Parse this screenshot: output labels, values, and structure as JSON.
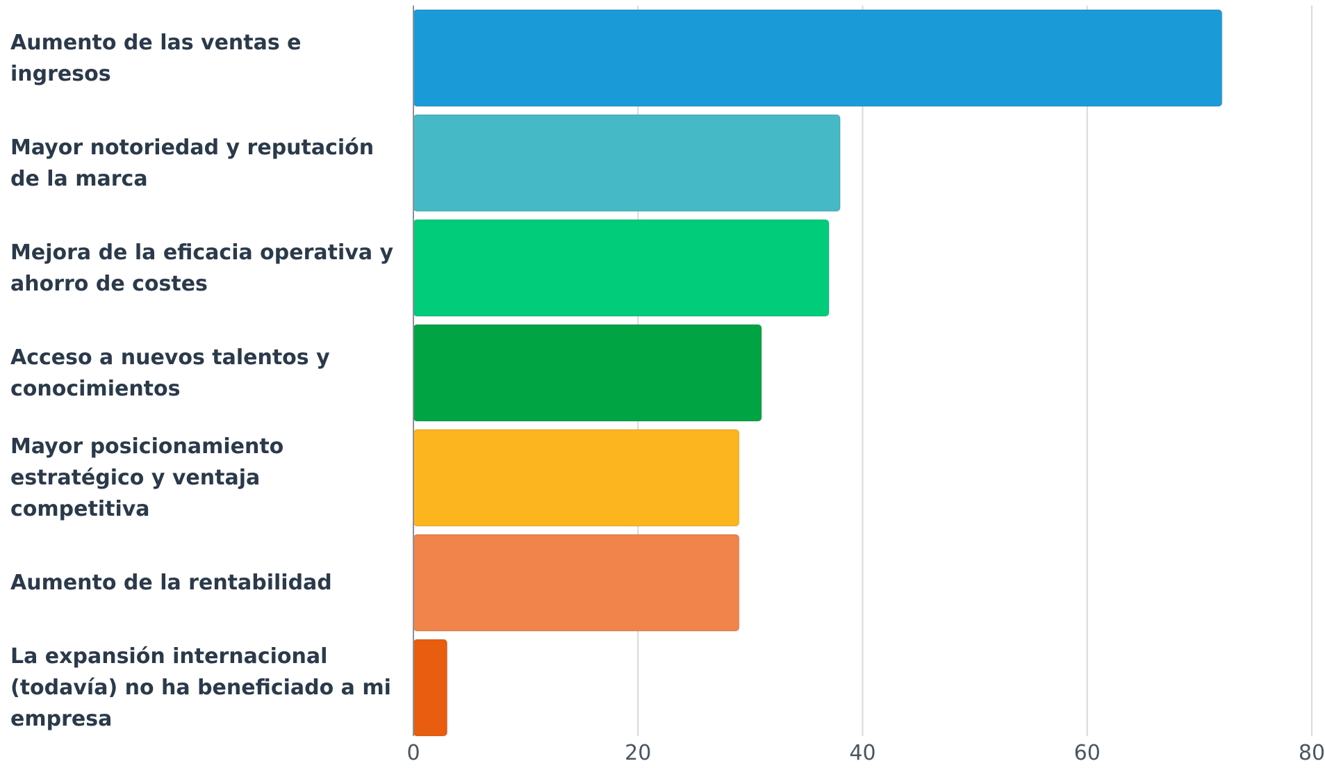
{
  "chart_data": {
    "type": "bar",
    "orientation": "horizontal",
    "categories": [
      "Aumento de las ventas e ingresos",
      "Mayor notoriedad y reputación de la marca",
      "Mejora de la eficacia operativa y ahorro de costes",
      "Acceso a nuevos talentos y conocimientos",
      "Mayor posicionamiento estratégico y ventaja competitiva",
      "Aumento de la rentabilidad",
      "La expansión internacional (todavía) no ha beneficiado a mi empresa"
    ],
    "values": [
      72,
      38,
      37,
      31,
      29,
      29,
      3
    ],
    "colors": [
      "#1a9bd7",
      "#45bac6",
      "#00cc7a",
      "#00a443",
      "#fdb51f",
      "#f0844b",
      "#e85d0f"
    ],
    "xlim": [
      0,
      80
    ],
    "xticks": [
      0,
      20,
      40,
      60,
      80
    ],
    "xlabel": "",
    "ylabel": "",
    "title": "",
    "grid": "vertical",
    "legend": "none"
  }
}
